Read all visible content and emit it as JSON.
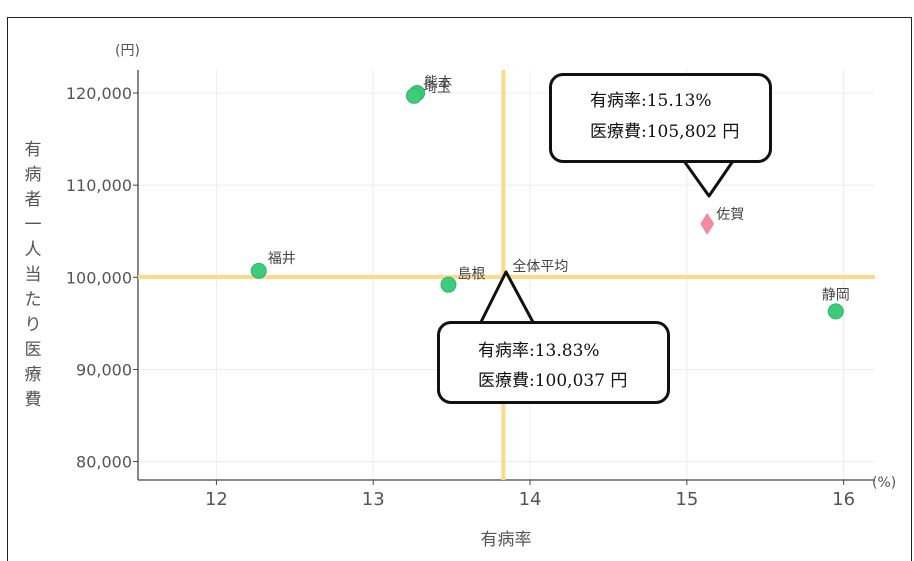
{
  "chart_data": {
    "type": "scatter",
    "xlabel": "有病率",
    "x_unit": "(%)",
    "y_unit": "(円)",
    "ylabel_chars": [
      "有",
      "病",
      "者",
      "一",
      "人",
      "当",
      "た",
      "り",
      "医",
      "療",
      "費"
    ],
    "xlim": [
      11.5,
      16.2
    ],
    "ylim": [
      78000,
      122500
    ],
    "x_ticks": [
      12,
      13,
      14,
      15,
      16
    ],
    "y_ticks": [
      80000,
      90000,
      100000,
      110000,
      120000
    ],
    "y_tick_labels": [
      "80,000",
      "90,000",
      "100,000",
      "110,000",
      "120,000"
    ],
    "grid": true,
    "reference": {
      "name": "全体平均",
      "x": 13.83,
      "y": 100037,
      "color": "#FFD98A"
    },
    "highlight": {
      "name": "佐賀",
      "x": 15.13,
      "y": 105802,
      "marker": "diamond",
      "color": "#F08CA4"
    },
    "points": [
      {
        "name": "福井",
        "x": 12.27,
        "y": 100700
      },
      {
        "name": "島根",
        "x": 13.48,
        "y": 99200
      },
      {
        "name": "熊本",
        "x": 13.28,
        "y": 120000
      },
      {
        "name": "埼玉",
        "x": 13.26,
        "y": 119700
      },
      {
        "name": "静岡",
        "x": 15.95,
        "y": 96300
      }
    ],
    "point_color": "#3DCB7C",
    "callouts": [
      {
        "target": "佐賀",
        "rate_label": "有病率:15.13%",
        "cost_label": "医療費:105,802 円"
      },
      {
        "target": "全体平均",
        "rate_label": "有病率:13.83%",
        "cost_label": "医療費:100,037 円"
      }
    ]
  }
}
